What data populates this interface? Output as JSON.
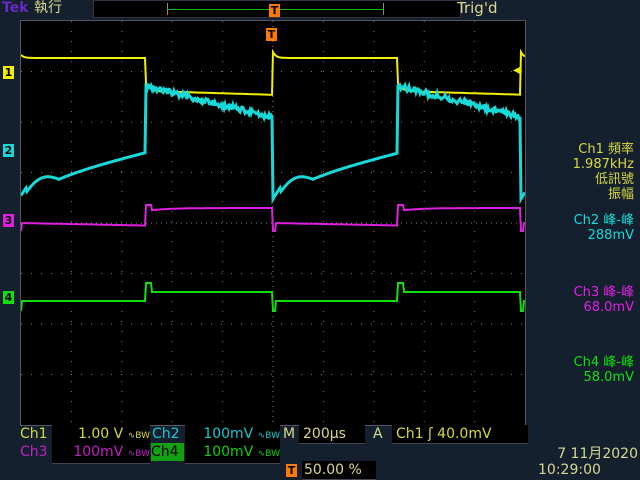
{
  "header": {
    "brand": "Tek",
    "run_state": "執行",
    "trigger_status": "Trig'd"
  },
  "colors": {
    "ch1": "#f0f000",
    "ch2": "#18d8d8",
    "ch3": "#e020e0",
    "ch4": "#10e010",
    "trigger": "#ff7a00"
  },
  "markers": {
    "ch1": "1",
    "ch2": "2",
    "ch3": "3",
    "ch4": "4",
    "trigger": "T"
  },
  "channels": [
    {
      "name": "Ch1",
      "scale": "1.00 V",
      "bw": "∿BW"
    },
    {
      "name": "Ch2",
      "scale": "100mV",
      "bw": "∿BW"
    },
    {
      "name": "Ch3",
      "scale": "100mV",
      "bw": "∿BW"
    },
    {
      "name": "Ch4",
      "scale": "100mV",
      "bw": "∿BW"
    }
  ],
  "timebase": {
    "label": "M",
    "value": "200µs"
  },
  "trigger": {
    "mode": "A",
    "source": "Ch1",
    "slope": "ʃ",
    "level": "40.0mV",
    "position": "50.00 %"
  },
  "measurements": [
    {
      "line1": "Ch1 頻率",
      "line2": "1.987kHz",
      "line3": "低訊號",
      "line4": "振幅"
    },
    {
      "line1": "Ch2 峰-峰",
      "line2": "288mV"
    },
    {
      "line1": "Ch3 峰-峰",
      "line2": "68.0mV"
    },
    {
      "line1": "Ch4 峰-峰",
      "line2": "58.0mV"
    }
  ],
  "datetime": {
    "date": "7 11月2020",
    "time": "10:29:00"
  }
}
